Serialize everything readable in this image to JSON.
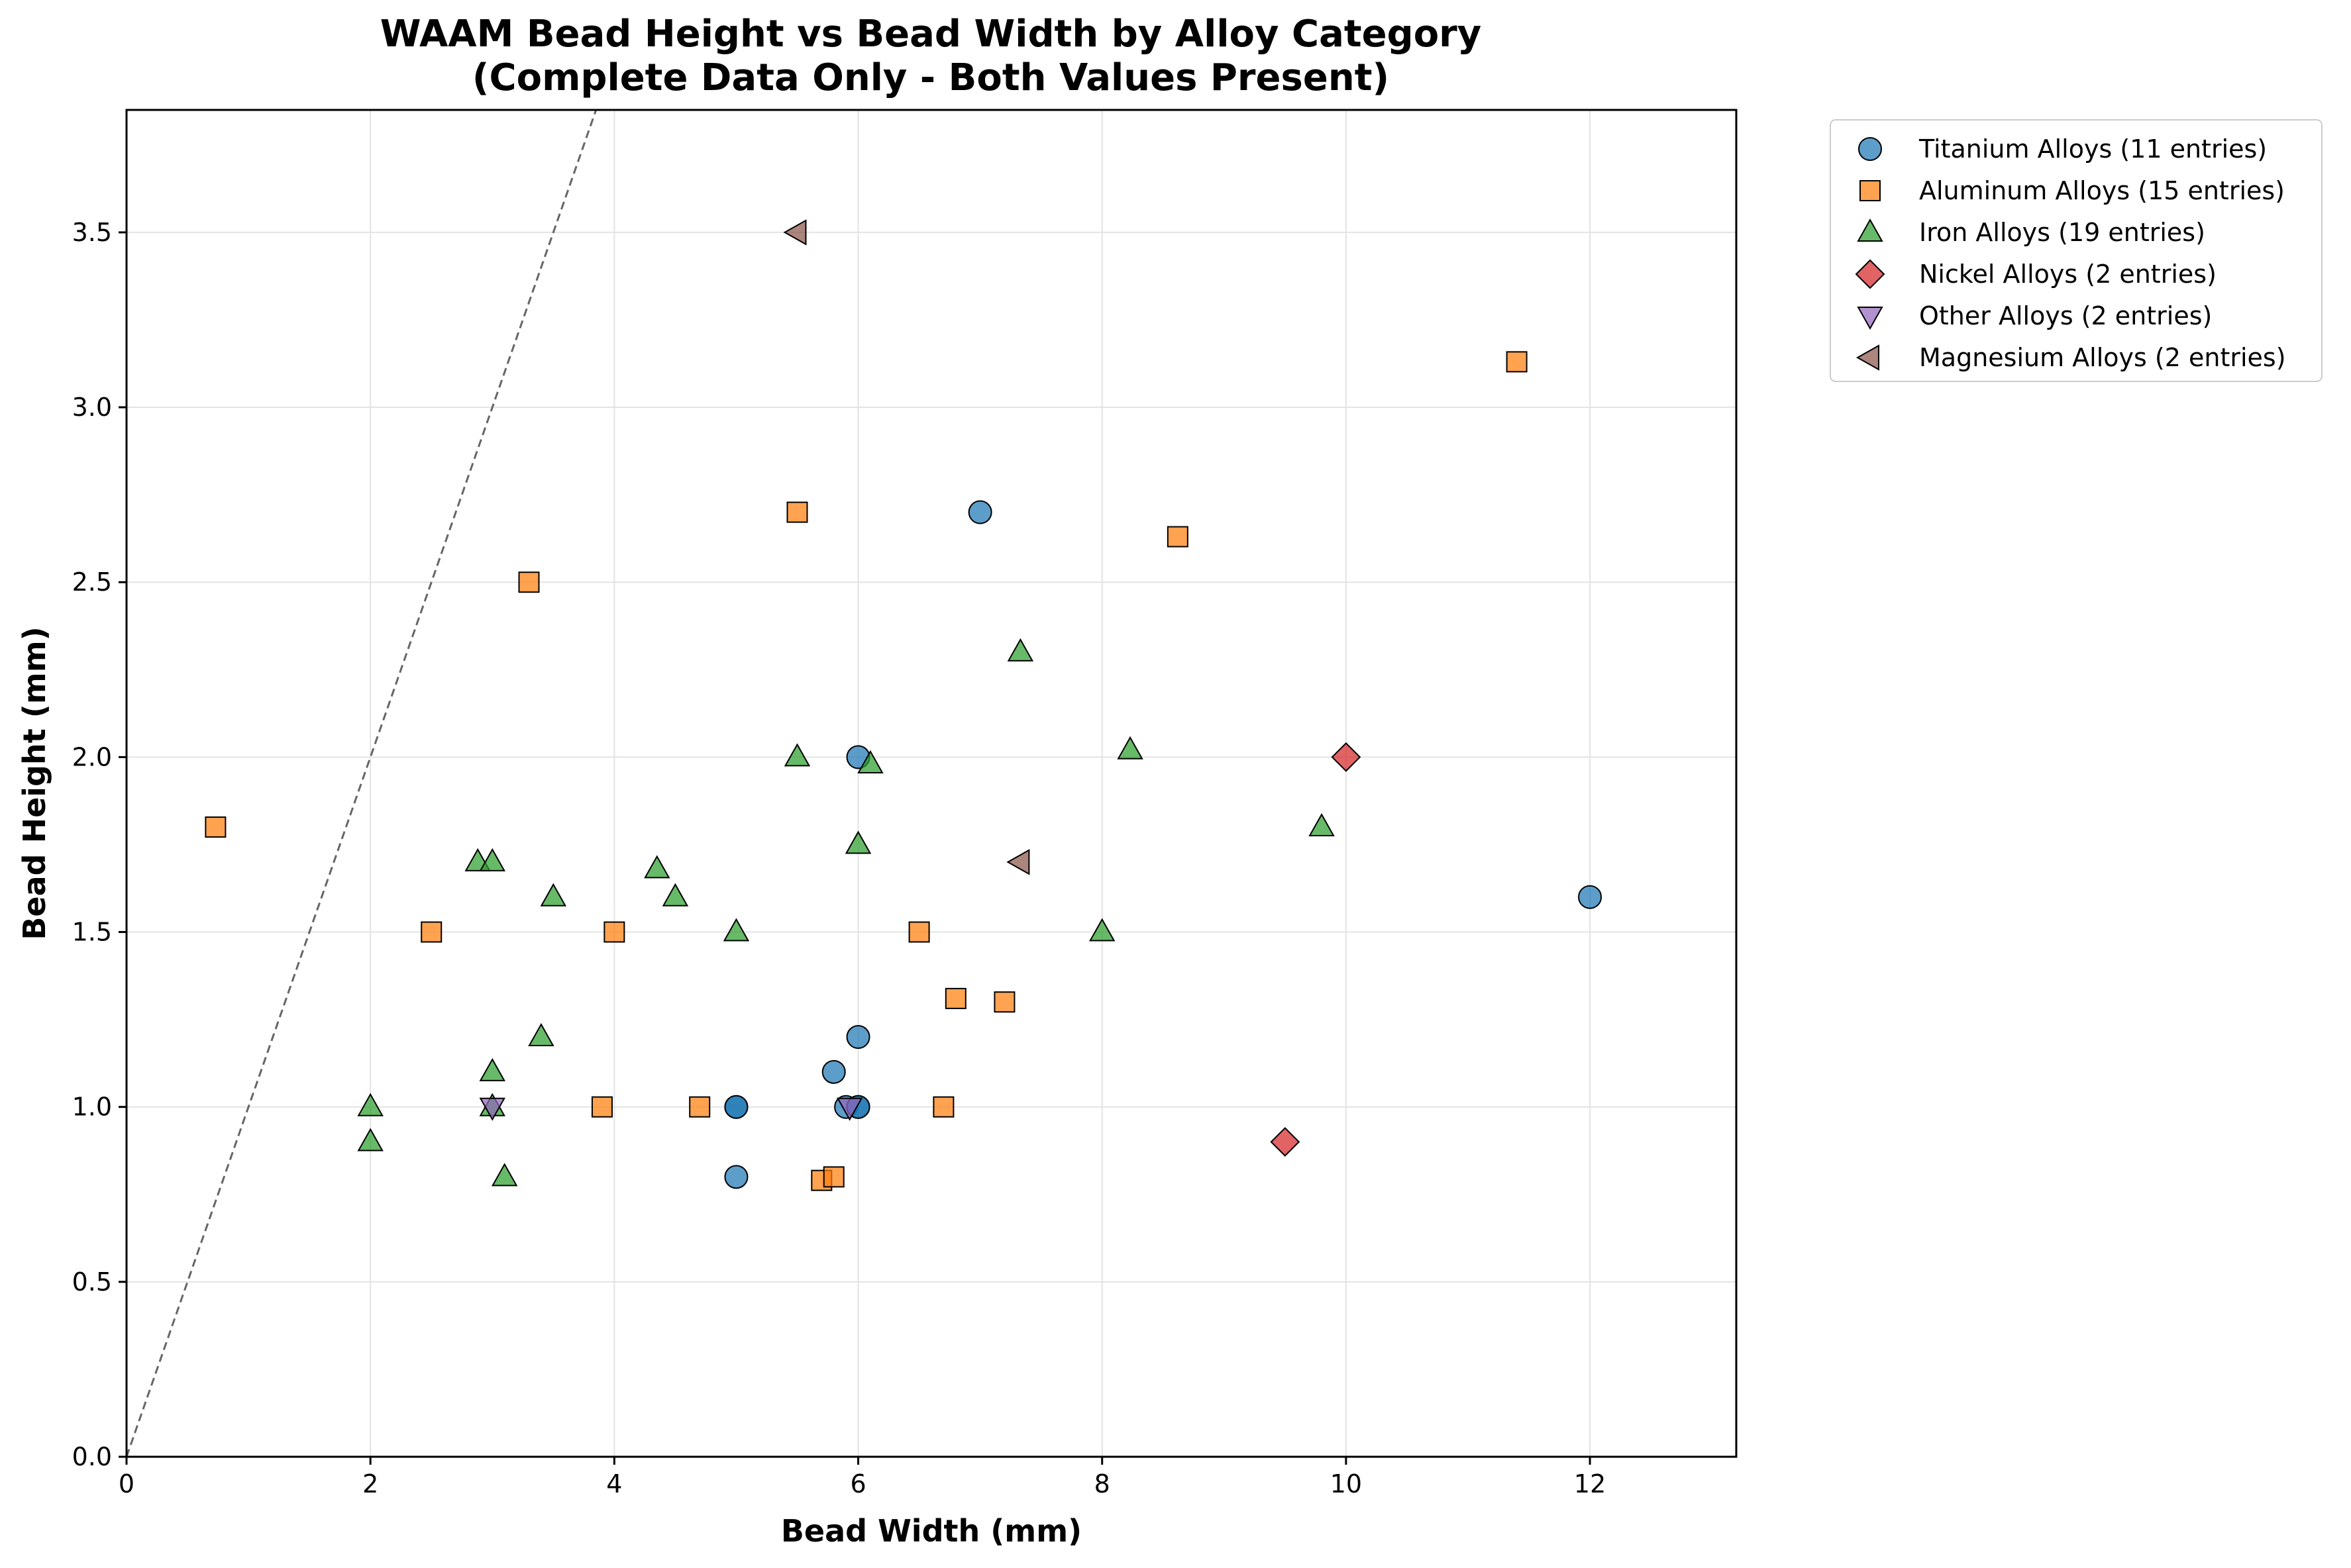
{
  "chart_data": {
    "type": "scatter",
    "title": "WAAM Bead Height vs Bead Width by Alloy Category",
    "subtitle": "(Complete Data Only - Both Values Present)",
    "xlabel": "Bead Width (mm)",
    "ylabel": "Bead Height (mm)",
    "xlim": [
      0,
      13.2
    ],
    "ylim": [
      0,
      3.85
    ],
    "xticks": [
      0,
      2,
      4,
      6,
      8,
      10,
      12
    ],
    "yticks": [
      0.0,
      0.5,
      1.0,
      1.5,
      2.0,
      2.5,
      3.0,
      3.5
    ],
    "xtick_labels": [
      "0",
      "2",
      "4",
      "6",
      "8",
      "10",
      "12"
    ],
    "ytick_labels": [
      "0.0",
      "0.5",
      "1.0",
      "1.5",
      "2.0",
      "2.5",
      "3.0",
      "3.5"
    ],
    "grid": true,
    "legend_position": "outside-top-right",
    "reference_line": {
      "style": "dashed",
      "color": "#666666",
      "points": [
        [
          0,
          0
        ],
        [
          3.85,
          3.85
        ]
      ]
    },
    "series": [
      {
        "name": "Titanium Alloys (11 entries)",
        "marker": "circle",
        "color": "#1f77b4",
        "points": [
          [
            5,
            1.0
          ],
          [
            5,
            1.0
          ],
          [
            5,
            0.8
          ],
          [
            5.8,
            1.1
          ],
          [
            5.9,
            1.0
          ],
          [
            6,
            1.0
          ],
          [
            6,
            1.2
          ],
          [
            6,
            2.0
          ],
          [
            7,
            2.7
          ],
          [
            12,
            1.6
          ],
          [
            6,
            1.0
          ]
        ]
      },
      {
        "name": "Aluminum Alloys (15 entries)",
        "marker": "square",
        "color": "#ff7f0e",
        "points": [
          [
            0.73,
            1.8
          ],
          [
            2.5,
            1.5
          ],
          [
            3.3,
            2.5
          ],
          [
            3.9,
            1.0
          ],
          [
            4.0,
            1.5
          ],
          [
            4.7,
            1.0
          ],
          [
            5.5,
            2.7
          ],
          [
            5.7,
            0.79
          ],
          [
            5.8,
            0.8
          ],
          [
            6.5,
            1.5
          ],
          [
            6.7,
            1.0
          ],
          [
            6.8,
            1.31
          ],
          [
            7.2,
            1.3
          ],
          [
            8.62,
            2.63
          ],
          [
            11.4,
            3.13
          ]
        ]
      },
      {
        "name": "Iron Alloys (19 entries)",
        "marker": "triangle-up",
        "color": "#2ca02c",
        "points": [
          [
            2,
            1.0
          ],
          [
            2,
            0.9
          ],
          [
            2.88,
            1.7
          ],
          [
            3,
            1.7
          ],
          [
            3,
            1.1
          ],
          [
            3,
            1.0
          ],
          [
            3.1,
            0.8
          ],
          [
            3.4,
            1.2
          ],
          [
            3.5,
            1.6
          ],
          [
            4.35,
            1.68
          ],
          [
            4.5,
            1.6
          ],
          [
            5,
            1.5
          ],
          [
            5.5,
            2.0
          ],
          [
            6,
            1.75
          ],
          [
            6.1,
            1.98
          ],
          [
            7.33,
            2.3
          ],
          [
            8,
            1.5
          ],
          [
            8.23,
            2.02
          ],
          [
            9.8,
            1.8
          ]
        ]
      },
      {
        "name": "Nickel Alloys (2 entries)",
        "marker": "diamond",
        "color": "#d62728",
        "points": [
          [
            10,
            2.0
          ],
          [
            9.5,
            0.9
          ]
        ]
      },
      {
        "name": "Other Alloys (2 entries)",
        "marker": "triangle-down",
        "color": "#9467bd",
        "points": [
          [
            3,
            1.0
          ],
          [
            5.93,
            1.0
          ]
        ]
      },
      {
        "name": "Magnesium Alloys (2 entries)",
        "marker": "triangle-left",
        "color": "#8c564b",
        "points": [
          [
            5.5,
            3.5
          ],
          [
            7.33,
            1.7
          ]
        ]
      }
    ]
  }
}
